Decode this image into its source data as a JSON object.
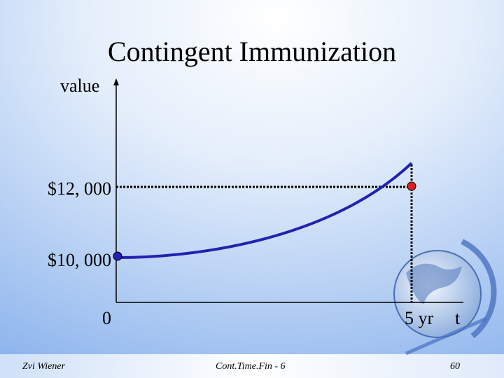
{
  "title": "Contingent Immunization",
  "axis": {
    "y_label": "value",
    "x_label": "t"
  },
  "labels": {
    "high": "$12, 000",
    "low": "$10, 000",
    "origin": "0",
    "horizon": "5 yr"
  },
  "footer": {
    "author": "Zvi Wiener",
    "course": "Cont.Time.Fin - 6",
    "page": "60"
  }
}
